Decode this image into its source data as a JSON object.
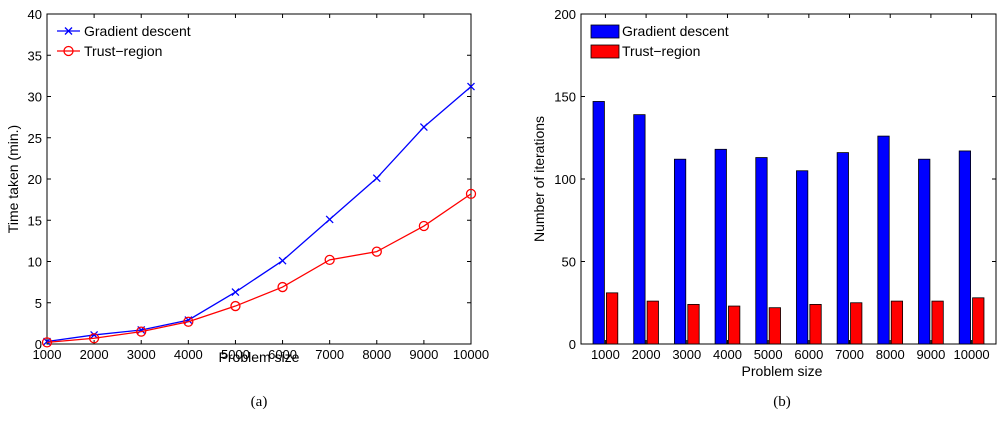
{
  "chart_data": [
    {
      "type": "line",
      "x": [
        1000,
        2000,
        3000,
        4000,
        5000,
        6000,
        7000,
        8000,
        9000,
        10000
      ],
      "xlabel": "Problem size",
      "ylabel": "Time taken (min.)",
      "xlim": [
        1000,
        10000
      ],
      "ylim": [
        0,
        40
      ],
      "xticks": [
        "1000",
        "2000",
        "3000",
        "4000",
        "5000",
        "6000",
        "7000",
        "8000",
        "9000",
        "10000"
      ],
      "yticks": [
        "0",
        "5",
        "10",
        "15",
        "20",
        "25",
        "30",
        "35",
        "40"
      ],
      "series": [
        {
          "name": "Gradient descent",
          "color": "#0000ff",
          "marker": "x",
          "values": [
            0.3,
            1.1,
            1.7,
            2.9,
            6.3,
            10.1,
            15.1,
            20.1,
            26.3,
            31.2
          ]
        },
        {
          "name": "Trust−region",
          "color": "#ff0000",
          "marker": "o",
          "values": [
            0.2,
            0.7,
            1.5,
            2.7,
            4.6,
            6.9,
            10.2,
            11.2,
            14.3,
            18.2
          ]
        }
      ],
      "grid": false,
      "legend": "top-left",
      "caption": "(a)"
    },
    {
      "type": "bar",
      "categories": [
        "1000",
        "2000",
        "3000",
        "4000",
        "5000",
        "6000",
        "7000",
        "8000",
        "9000",
        "10000"
      ],
      "xlabel": "Problem size",
      "ylabel": "Number of iterations",
      "ylim": [
        0,
        200
      ],
      "yticks": [
        "0",
        "50",
        "100",
        "150",
        "200"
      ],
      "series": [
        {
          "name": "Gradient descent",
          "color": "#0000ff",
          "values": [
            147,
            139,
            112,
            118,
            113,
            105,
            116,
            126,
            112,
            117
          ]
        },
        {
          "name": "Trust−region",
          "color": "#ff0000",
          "values": [
            31,
            26,
            24,
            23,
            22,
            24,
            25,
            26,
            26,
            28
          ]
        }
      ],
      "grid": false,
      "legend": "top-left",
      "caption": "(b)"
    }
  ]
}
